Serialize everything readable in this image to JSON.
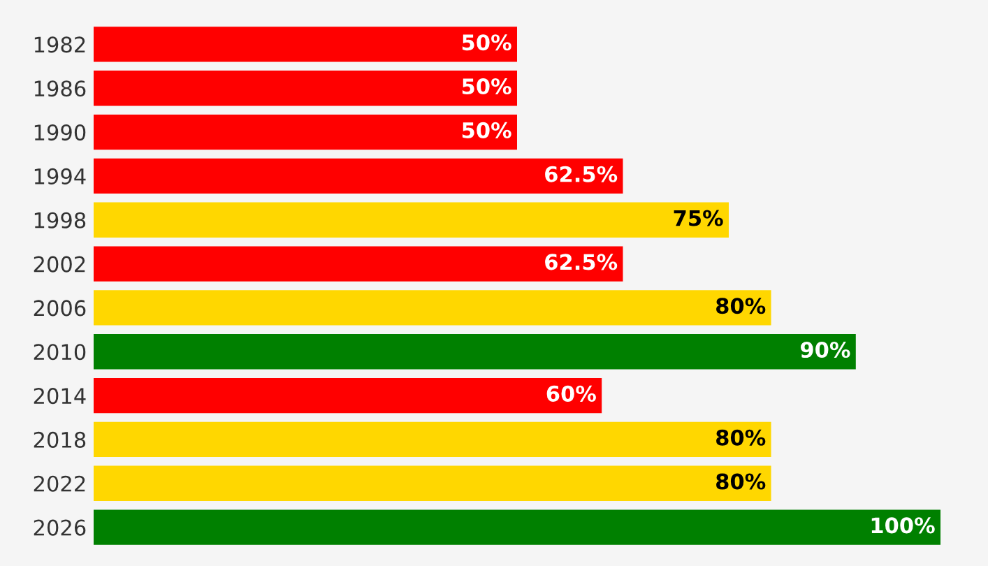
{
  "chart_data": {
    "type": "bar",
    "orientation": "horizontal",
    "categories": [
      "1982",
      "1986",
      "1990",
      "1994",
      "1998",
      "2002",
      "2006",
      "2010",
      "2014",
      "2018",
      "2022",
      "2026"
    ],
    "values": [
      50,
      50,
      50,
      62.5,
      75,
      62.5,
      80,
      90,
      60,
      80,
      80,
      100
    ],
    "value_labels": [
      "50%",
      "50%",
      "50%",
      "62.5%",
      "75%",
      "62.5%",
      "80%",
      "90%",
      "60%",
      "80%",
      "80%",
      "100%"
    ],
    "colors": [
      "#ff0000",
      "#ff0000",
      "#ff0000",
      "#ff0000",
      "#ffd700",
      "#ff0000",
      "#ffd700",
      "#008000",
      "#ff0000",
      "#ffd700",
      "#ffd700",
      "#008000"
    ],
    "grid": false,
    "legend": false
  }
}
